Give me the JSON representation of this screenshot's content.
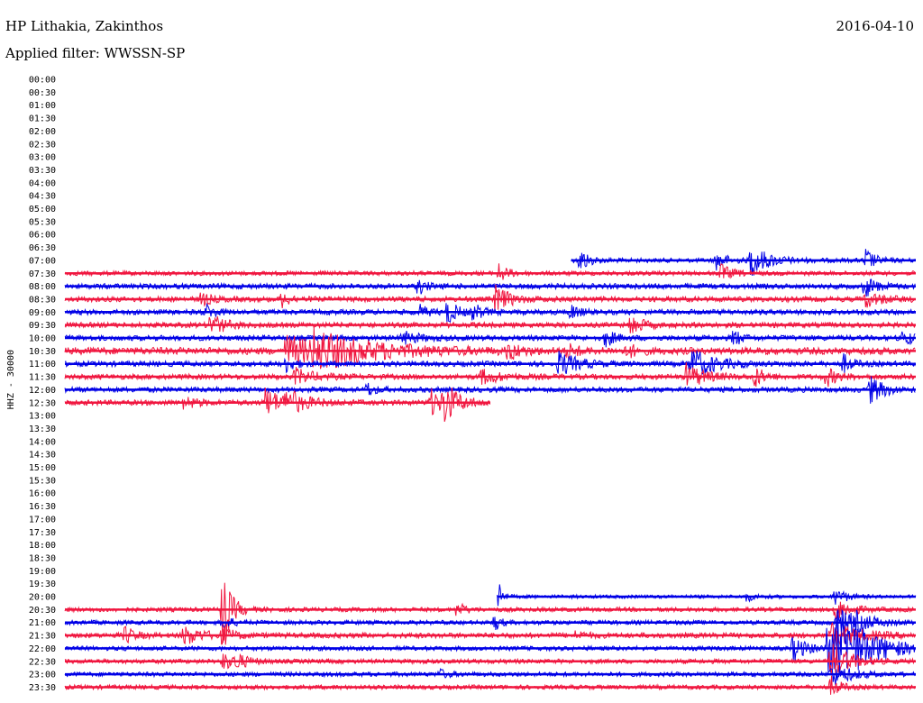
{
  "header": {
    "station": "HP Lithakia, Zakinthos",
    "date": "2016-04-10",
    "filter": "Applied filter: WWSSN-SP"
  },
  "chart_data": {
    "type": "line",
    "title": "",
    "ylabel": "HHZ - 30000",
    "xlabel": "",
    "grid": false,
    "legend": "none",
    "colors": {
      "red": "#f0163f",
      "blue": "#0000e6"
    },
    "row_labels": [
      "00:00",
      "00:30",
      "01:00",
      "01:30",
      "02:00",
      "02:30",
      "03:00",
      "03:30",
      "04:00",
      "04:30",
      "05:00",
      "05:30",
      "06:00",
      "06:30",
      "07:00",
      "07:30",
      "08:00",
      "08:30",
      "09:00",
      "09:30",
      "10:00",
      "10:30",
      "11:00",
      "11:30",
      "12:00",
      "12:30",
      "13:00",
      "13:30",
      "14:00",
      "14:30",
      "15:00",
      "15:30",
      "16:00",
      "16:30",
      "17:00",
      "17:30",
      "18:00",
      "18:30",
      "19:00",
      "19:30",
      "20:00",
      "20:30",
      "21:00",
      "21:30",
      "22:00",
      "22:30",
      "23:00",
      "23:30"
    ],
    "traces": [
      {
        "row": 14,
        "color": "blue",
        "start": 0.595,
        "end": 1.0,
        "noise": 2.5,
        "events": [
          {
            "at": 0.605,
            "amp": 14,
            "decay": 0.01
          },
          {
            "at": 0.765,
            "amp": 10,
            "decay": 0.012
          },
          {
            "at": 0.805,
            "amp": 18,
            "decay": 0.02
          },
          {
            "at": 0.94,
            "amp": 14,
            "decay": 0.01
          }
        ]
      },
      {
        "row": 15,
        "color": "red",
        "start": 0.0,
        "end": 1.0,
        "noise": 2.5,
        "events": [
          {
            "at": 0.51,
            "amp": 10,
            "decay": 0.01
          },
          {
            "at": 0.77,
            "amp": 10,
            "decay": 0.012
          }
        ]
      },
      {
        "row": 16,
        "color": "blue",
        "start": 0.0,
        "end": 1.0,
        "noise": 3,
        "events": [
          {
            "at": 0.415,
            "amp": 9,
            "decay": 0.008
          },
          {
            "at": 0.94,
            "amp": 12,
            "decay": 0.012
          }
        ]
      },
      {
        "row": 17,
        "color": "red",
        "start": 0.0,
        "end": 1.0,
        "noise": 3,
        "events": [
          {
            "at": 0.16,
            "amp": 8,
            "decay": 0.01
          },
          {
            "at": 0.255,
            "amp": 8,
            "decay": 0.01
          },
          {
            "at": 0.505,
            "amp": 16,
            "decay": 0.015
          },
          {
            "at": 0.94,
            "amp": 8,
            "decay": 0.02
          }
        ]
      },
      {
        "row": 18,
        "color": "blue",
        "start": 0.0,
        "end": 1.0,
        "noise": 3,
        "events": [
          {
            "at": 0.165,
            "amp": 8,
            "decay": 0.01
          },
          {
            "at": 0.415,
            "amp": 8,
            "decay": 0.01
          },
          {
            "at": 0.45,
            "amp": 14,
            "decay": 0.01
          },
          {
            "at": 0.48,
            "amp": 9,
            "decay": 0.01
          },
          {
            "at": 0.595,
            "amp": 9,
            "decay": 0.008
          }
        ]
      },
      {
        "row": 19,
        "color": "red",
        "start": 0.0,
        "end": 1.0,
        "noise": 3,
        "events": [
          {
            "at": 0.17,
            "amp": 14,
            "decay": 0.015
          },
          {
            "at": 0.665,
            "amp": 12,
            "decay": 0.012
          }
        ]
      },
      {
        "row": 20,
        "color": "blue",
        "start": 0.0,
        "end": 1.0,
        "noise": 3,
        "events": [
          {
            "at": 0.395,
            "amp": 7,
            "decay": 0.02
          },
          {
            "at": 0.635,
            "amp": 10,
            "decay": 0.01
          },
          {
            "at": 0.785,
            "amp": 11,
            "decay": 0.008
          },
          {
            "at": 0.985,
            "amp": 10,
            "decay": 0.01
          }
        ]
      },
      {
        "row": 21,
        "color": "red",
        "start": 0.0,
        "end": 1.0,
        "noise": 4,
        "events": [
          {
            "at": 0.26,
            "amp": 16,
            "decay": 0.05
          },
          {
            "at": 0.29,
            "amp": 16,
            "decay": 0.07
          },
          {
            "at": 0.52,
            "amp": 10,
            "decay": 0.012
          },
          {
            "at": 0.59,
            "amp": 8,
            "decay": 0.01
          },
          {
            "at": 0.66,
            "amp": 8,
            "decay": 0.01
          }
        ]
      },
      {
        "row": 22,
        "color": "blue",
        "start": 0.0,
        "end": 1.0,
        "noise": 3,
        "events": [
          {
            "at": 0.26,
            "amp": 8,
            "decay": 0.01
          },
          {
            "at": 0.58,
            "amp": 14,
            "decay": 0.02
          },
          {
            "at": 0.735,
            "amp": 18,
            "decay": 0.025
          },
          {
            "at": 0.915,
            "amp": 10,
            "decay": 0.01
          }
        ]
      },
      {
        "row": 23,
        "color": "red",
        "start": 0.0,
        "end": 1.0,
        "noise": 3,
        "events": [
          {
            "at": 0.27,
            "amp": 9,
            "decay": 0.02
          },
          {
            "at": 0.49,
            "amp": 8,
            "decay": 0.02
          },
          {
            "at": 0.73,
            "amp": 14,
            "decay": 0.02
          },
          {
            "at": 0.81,
            "amp": 12,
            "decay": 0.01
          },
          {
            "at": 0.895,
            "amp": 10,
            "decay": 0.012
          }
        ]
      },
      {
        "row": 24,
        "color": "blue",
        "start": 0.0,
        "end": 1.0,
        "noise": 3,
        "events": [
          {
            "at": 0.355,
            "amp": 8,
            "decay": 0.008
          },
          {
            "at": 0.945,
            "amp": 16,
            "decay": 0.015
          }
        ]
      },
      {
        "row": 25,
        "color": "red",
        "start": 0.0,
        "end": 0.5,
        "noise": 3,
        "events": [
          {
            "at": 0.14,
            "amp": 8,
            "decay": 0.012
          },
          {
            "at": 0.235,
            "amp": 16,
            "decay": 0.02
          },
          {
            "at": 0.26,
            "amp": 12,
            "decay": 0.02
          },
          {
            "at": 0.43,
            "amp": 14,
            "decay": 0.015
          },
          {
            "at": 0.445,
            "amp": 22,
            "decay": 0.015
          }
        ]
      },
      {
        "row": 40,
        "color": "blue",
        "start": 0.508,
        "end": 1.0,
        "noise": 2,
        "events": [
          {
            "at": 0.51,
            "amp": 20,
            "decay": 0.004
          },
          {
            "at": 0.8,
            "amp": 5,
            "decay": 0.01
          },
          {
            "at": 0.905,
            "amp": 10,
            "decay": 0.012
          }
        ]
      },
      {
        "row": 41,
        "color": "red",
        "start": 0.0,
        "end": 1.0,
        "noise": 2.5,
        "events": [
          {
            "at": 0.185,
            "amp": 45,
            "decay": 0.01
          },
          {
            "at": 0.46,
            "amp": 10,
            "decay": 0.008
          },
          {
            "at": 0.905,
            "amp": 14,
            "decay": 0.015
          }
        ]
      },
      {
        "row": 42,
        "color": "blue",
        "start": 0.0,
        "end": 1.0,
        "noise": 2.5,
        "events": [
          {
            "at": 0.185,
            "amp": 8,
            "decay": 0.01
          },
          {
            "at": 0.505,
            "amp": 10,
            "decay": 0.006
          },
          {
            "at": 0.905,
            "amp": 16,
            "decay": 0.02
          },
          {
            "at": 0.925,
            "amp": 10,
            "decay": 0.02
          }
        ]
      },
      {
        "row": 43,
        "color": "red",
        "start": 0.0,
        "end": 1.0,
        "noise": 3,
        "events": [
          {
            "at": 0.07,
            "amp": 10,
            "decay": 0.01
          },
          {
            "at": 0.14,
            "amp": 10,
            "decay": 0.02
          },
          {
            "at": 0.185,
            "amp": 10,
            "decay": 0.01
          },
          {
            "at": 0.6,
            "amp": 5,
            "decay": 0.01
          },
          {
            "at": 0.9,
            "amp": 14,
            "decay": 0.03
          }
        ]
      },
      {
        "row": 44,
        "color": "blue",
        "start": 0.0,
        "end": 1.0,
        "noise": 2.5,
        "events": [
          {
            "at": 0.855,
            "amp": 14,
            "decay": 0.015
          },
          {
            "at": 0.895,
            "amp": 30,
            "decay": 0.03
          },
          {
            "at": 0.91,
            "amp": 26,
            "decay": 0.04
          }
        ]
      },
      {
        "row": 45,
        "color": "red",
        "start": 0.0,
        "end": 1.0,
        "noise": 2.5,
        "events": [
          {
            "at": 0.185,
            "amp": 10,
            "decay": 0.012
          },
          {
            "at": 0.2,
            "amp": 7,
            "decay": 0.015
          },
          {
            "at": 0.9,
            "amp": 22,
            "decay": 0.02
          }
        ]
      },
      {
        "row": 46,
        "color": "blue",
        "start": 0.0,
        "end": 1.0,
        "noise": 2.5,
        "events": [
          {
            "at": 0.44,
            "amp": 5,
            "decay": 0.01
          },
          {
            "at": 0.9,
            "amp": 14,
            "decay": 0.02
          }
        ]
      },
      {
        "row": 47,
        "color": "red",
        "start": 0.0,
        "end": 1.0,
        "noise": 2.5,
        "events": [
          {
            "at": 0.9,
            "amp": 12,
            "decay": 0.01
          }
        ]
      }
    ]
  }
}
